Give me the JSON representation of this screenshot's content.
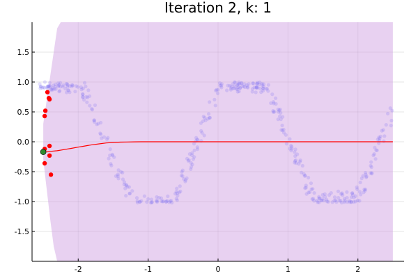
{
  "chart_data": {
    "type": "scatter",
    "title": "Iteration 2, k: 1",
    "xlabel": "",
    "ylabel": "",
    "xlim": [
      -2.66,
      2.66
    ],
    "ylim": [
      -2.0,
      2.0
    ],
    "xticks": [
      -2,
      -1,
      0,
      1,
      2
    ],
    "yticks": [
      -1.5,
      -1.0,
      -0.5,
      0.0,
      0.5,
      1.0,
      1.5
    ],
    "xtick_labels": [
      "-2",
      "-1",
      "0",
      "1",
      "2"
    ],
    "ytick_labels": [
      "-1.5",
      "-1.0",
      "-0.5",
      "0.0",
      "0.5",
      "1.0",
      "1.5"
    ],
    "grid": true,
    "legend": "none",
    "colors": {
      "band": "#d1a3e3",
      "background_points": "#7b6ff0",
      "selected_points": "#ff0000",
      "current_point": "#2e8b2e",
      "mean_line": "#ff0000"
    },
    "series": [
      {
        "kind": "band",
        "x": [
          -2.5,
          -2.45,
          -2.4,
          -2.35,
          -2.3,
          -2.25,
          -2.2,
          -2.1,
          -2.0,
          -1.8,
          -1.5,
          -1.0,
          0.0,
          1.0,
          2.0,
          2.5
        ],
        "lower": [
          -0.3,
          -0.8,
          -1.3,
          -1.75,
          -2.2,
          -2.6,
          -3.0,
          -3.0,
          -3.0,
          -3.0,
          -3.0,
          -3.0,
          -3.0,
          -3.0,
          -3.0,
          -3.0
        ],
        "upper": [
          0.3,
          0.7,
          1.1,
          1.5,
          1.9,
          2.3,
          2.6,
          3.0,
          3.0,
          3.0,
          3.0,
          3.0,
          3.0,
          3.0,
          3.0,
          3.0
        ]
      },
      {
        "kind": "line",
        "x": [
          -2.5,
          -2.45,
          -2.4,
          -2.3,
          -2.2,
          -2.1,
          -2.0,
          -1.9,
          -1.8,
          -1.7,
          -1.6,
          -1.5,
          -1.4,
          -1.3,
          -1.2,
          -1.1,
          -1.0,
          0.0,
          1.0,
          2.0,
          2.5
        ],
        "y": [
          -0.17,
          -0.17,
          -0.16,
          -0.15,
          -0.13,
          -0.11,
          -0.09,
          -0.07,
          -0.05,
          -0.035,
          -0.02,
          -0.012,
          -0.006,
          -0.003,
          -0.001,
          0.0,
          0.0,
          0.0,
          0.0,
          0.0,
          0.0
        ]
      },
      {
        "kind": "points-selected",
        "x": [
          -2.44,
          -2.42,
          -2.41,
          -2.47,
          -2.48,
          -2.41,
          -2.48,
          -2.41,
          -2.48,
          -2.39
        ],
        "y": [
          0.83,
          0.73,
          0.71,
          0.52,
          0.43,
          -0.07,
          -0.12,
          -0.23,
          -0.36,
          -0.55
        ]
      },
      {
        "kind": "point-current",
        "x": [
          -2.5
        ],
        "y": [
          -0.17
        ]
      }
    ]
  }
}
